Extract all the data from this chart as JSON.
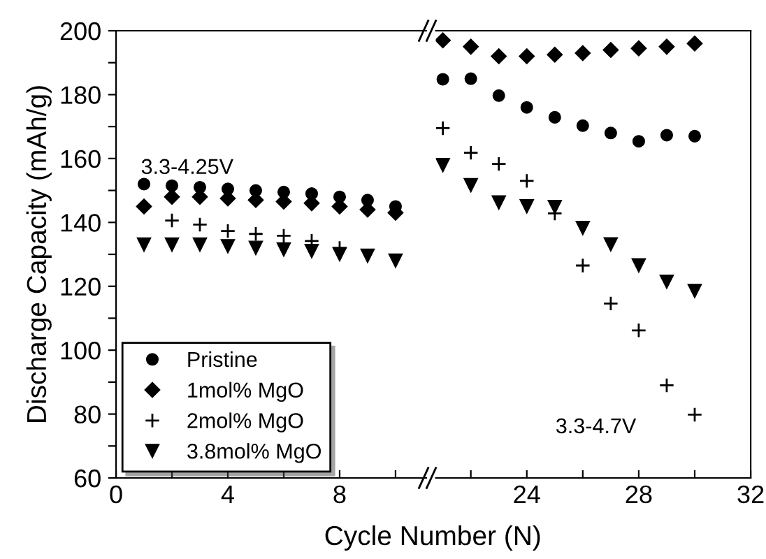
{
  "chart_data": [
    {
      "type": "scatter",
      "ylabel": "Discharge Capacity (mAh/g)",
      "xlabel": "Cycle Number (N)",
      "annotations": [
        "3.3-4.25V"
      ],
      "x": [
        1,
        2,
        3,
        4,
        5,
        6,
        7,
        8,
        9,
        10
      ],
      "series": [
        {
          "name": "Pristine",
          "color": "#000000",
          "marker": "circle",
          "values": [
            152,
            151.5,
            151,
            150.5,
            150,
            149.5,
            149,
            148,
            147,
            145
          ]
        },
        {
          "name": "1mol% MgO",
          "color": "#000000",
          "marker": "diamond",
          "values": [
            145,
            148,
            148,
            147.5,
            147,
            146.5,
            146,
            145,
            144,
            143
          ]
        },
        {
          "name": "2mol% MgO",
          "color": "#000000",
          "marker": "cross",
          "values": [
            null,
            140.6,
            139.3,
            137.3,
            136.4,
            135.8,
            134.2,
            132,
            null,
            null
          ]
        },
        {
          "name": "3.8mol% MgO",
          "color": "#000000",
          "marker": "triangle",
          "values": [
            133,
            133,
            133,
            132.5,
            132,
            131.5,
            131,
            130,
            129.5,
            128
          ]
        }
      ],
      "xlim": [
        0,
        11.1
      ],
      "xticks": [
        0,
        {
          "value": 2,
          "label": null
        },
        4,
        {
          "value": 6,
          "label": null
        },
        8,
        {
          "value": 10,
          "label": null
        }
      ],
      "ylim": [
        60,
        200
      ],
      "yticks": [
        60,
        {
          "value": 70,
          "label": null
        },
        80,
        {
          "value": 90,
          "label": null
        },
        100,
        {
          "value": 110,
          "label": null
        },
        120,
        {
          "value": 130,
          "label": null
        },
        140,
        {
          "value": 150,
          "label": null
        },
        160,
        {
          "value": 170,
          "label": null
        },
        180,
        {
          "value": 190,
          "label": null
        },
        200
      ],
      "legend": "bottom left",
      "grid": false
    },
    {
      "type": "scatter",
      "annotations": [
        "3.3-4.7V"
      ],
      "x": [
        21,
        22,
        23,
        24,
        25,
        26,
        27,
        28,
        29,
        30
      ],
      "series": [
        {
          "color": "#000000",
          "marker": "circle",
          "values": [
            184.8,
            185,
            179.7,
            176,
            172.9,
            170.3,
            168,
            165.4,
            167.3,
            167
          ]
        },
        {
          "color": "#000000",
          "marker": "diamond",
          "values": [
            197,
            195,
            192,
            192,
            192.5,
            193,
            194,
            194.5,
            195,
            196
          ]
        },
        {
          "color": "#000000",
          "marker": "cross",
          "values": [
            169.5,
            161.8,
            158.3,
            153,
            142.8,
            126.5,
            114.6,
            106.2,
            89,
            79.8
          ]
        },
        {
          "color": "#000000",
          "marker": "triangle",
          "values": [
            157.9,
            151.6,
            146.2,
            145,
            144.8,
            138.2,
            133.1,
            126.5,
            121.4,
            118.5
          ]
        }
      ],
      "xlim": [
        20.75,
        32
      ],
      "xticks": [
        {
          "value": 22,
          "label": null
        },
        24,
        {
          "value": 26,
          "label": null
        },
        28,
        {
          "value": 30,
          "label": null
        },
        32
      ],
      "ylim": [
        60,
        200
      ],
      "tick_labels": "x",
      "grid": false
    }
  ]
}
